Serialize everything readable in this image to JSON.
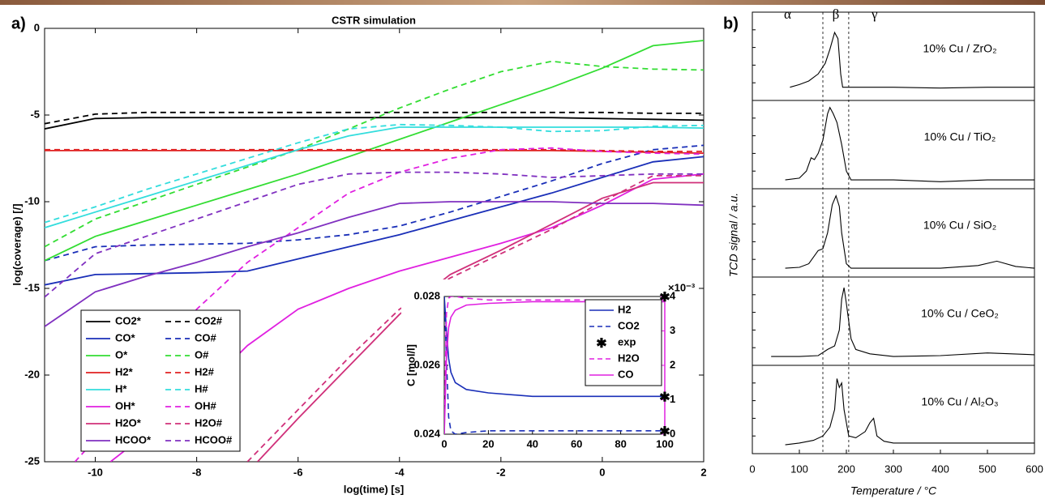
{
  "chart_data": [
    {
      "type": "line",
      "label": "a)",
      "title": "CSTR simulation",
      "xlabel": "log(time) [s]",
      "ylabel": "log(coverage) [/]",
      "xlim": [
        -11,
        2
      ],
      "ylim": [
        -25,
        0
      ],
      "xticks": [
        -10,
        -8,
        -6,
        -4,
        -2,
        0,
        2
      ],
      "yticks": [
        -25,
        -20,
        -15,
        -10,
        -5,
        0
      ],
      "legend": "lower-left",
      "x": [
        -11,
        -10,
        -9,
        -8,
        -7,
        -6,
        -5,
        -4,
        -3,
        -2,
        -1,
        0,
        1,
        2
      ],
      "series": [
        {
          "name": "CO2*",
          "color": "#000000",
          "dashed": false,
          "values": [
            -5.8,
            -5.2,
            -5.15,
            -5.15,
            -5.15,
            -5.15,
            -5.15,
            -5.15,
            -5.15,
            -5.15,
            -5.15,
            -5.2,
            -5.25,
            -5.3
          ]
        },
        {
          "name": "CO2#",
          "color": "#000000",
          "dashed": true,
          "values": [
            -5.5,
            -4.95,
            -4.85,
            -4.85,
            -4.85,
            -4.85,
            -4.85,
            -4.85,
            -4.85,
            -4.85,
            -4.85,
            -4.85,
            -4.9,
            -4.9
          ]
        },
        {
          "name": "CO*",
          "color": "#1a2fb8",
          "dashed": false,
          "values": [
            -14.8,
            -14.2,
            -14.15,
            -14.1,
            -14.0,
            -13.3,
            -12.6,
            -11.9,
            -11.1,
            -10.3,
            -9.5,
            -8.6,
            -7.7,
            -7.4
          ]
        },
        {
          "name": "CO#",
          "color": "#1a2fb8",
          "dashed": true,
          "values": [
            -13.4,
            -12.6,
            -12.5,
            -12.45,
            -12.4,
            -12.2,
            -11.9,
            -11.4,
            -10.6,
            -9.7,
            -8.8,
            -7.8,
            -7.0,
            -6.75
          ]
        },
        {
          "name": "O*",
          "color": "#33dd33",
          "dashed": false,
          "values": [
            -13.4,
            -12.0,
            -11.1,
            -10.2,
            -9.3,
            -8.4,
            -7.4,
            -6.4,
            -5.4,
            -4.4,
            -3.4,
            -2.3,
            -1.0,
            -0.7
          ]
        },
        {
          "name": "O#",
          "color": "#33dd33",
          "dashed": true,
          "values": [
            -12.6,
            -11.0,
            -10.0,
            -9.0,
            -8.0,
            -7.0,
            -5.8,
            -4.6,
            -3.5,
            -2.5,
            -1.9,
            -2.2,
            -2.35,
            -2.4
          ]
        },
        {
          "name": "H2*",
          "color": "#e02020",
          "dashed": false,
          "values": [
            -7.05,
            -7.05,
            -7.05,
            -7.05,
            -7.05,
            -7.05,
            -7.05,
            -7.05,
            -7.05,
            -7.05,
            -7.05,
            -7.1,
            -7.15,
            -7.2
          ]
        },
        {
          "name": "H2#",
          "color": "#e02020",
          "dashed": true,
          "values": [
            -7.0,
            -7.0,
            -7.0,
            -7.0,
            -7.0,
            -7.0,
            -7.0,
            -7.0,
            -7.0,
            -7.0,
            -7.0,
            -7.05,
            -7.1,
            -7.1
          ]
        },
        {
          "name": "H*",
          "color": "#33dddd",
          "dashed": false,
          "values": [
            -11.5,
            -10.6,
            -9.7,
            -8.8,
            -7.9,
            -7.0,
            -6.2,
            -5.7,
            -5.7,
            -5.7,
            -5.7,
            -5.7,
            -5.7,
            -5.75
          ]
        },
        {
          "name": "H#",
          "color": "#33dddd",
          "dashed": true,
          "values": [
            -11.2,
            -10.3,
            -9.3,
            -8.4,
            -7.5,
            -6.6,
            -5.8,
            -5.55,
            -5.6,
            -5.7,
            -5.95,
            -5.9,
            -5.65,
            -5.6
          ]
        },
        {
          "name": "OH*",
          "color": "#e020e0",
          "dashed": false,
          "x": [
            -9.7,
            -9,
            -8,
            -7,
            -6,
            -5,
            -4,
            -3,
            -2,
            -1,
            0,
            1,
            2
          ],
          "values": [
            -25,
            -23.4,
            -21.2,
            -18.3,
            -16.2,
            -15,
            -14,
            -13.2,
            -12.4,
            -11.5,
            -10.2,
            -8.7,
            -8.4
          ]
        },
        {
          "name": "OH#",
          "color": "#e020e0",
          "dashed": true,
          "x": [
            -10.4,
            -9,
            -8,
            -7,
            -6,
            -5,
            -4,
            -3,
            -2,
            -1,
            0,
            1,
            2
          ],
          "values": [
            -25,
            -20.5,
            -16.2,
            -13.5,
            -11.5,
            -9.5,
            -8.3,
            -7.5,
            -7.0,
            -6.9,
            -7.1,
            -7.2,
            -7.25
          ]
        },
        {
          "name": "H2O*",
          "color": "#d0307a",
          "dashed": false,
          "x": [
            -6.8,
            -6,
            -5,
            -4,
            -3,
            -2,
            -1,
            0,
            1,
            2
          ],
          "values": [
            -25,
            -22.5,
            -19.5,
            -16.5,
            -14.2,
            -12.8,
            -11.3,
            -9.8,
            -8.9,
            -8.9
          ]
        },
        {
          "name": "H2O#",
          "color": "#d0307a",
          "dashed": true,
          "x": [
            -7,
            -6,
            -5,
            -4,
            -3,
            -2,
            -1,
            0,
            1,
            2
          ],
          "values": [
            -25,
            -22,
            -19,
            -16.2,
            -14.4,
            -13,
            -11.6,
            -10,
            -8.5,
            -8.5
          ]
        },
        {
          "name": "HCOO*",
          "color": "#8030c0",
          "dashed": false,
          "values": [
            -17.2,
            -15.2,
            -14.3,
            -13.5,
            -12.6,
            -11.8,
            -10.9,
            -10.1,
            -10.0,
            -10.0,
            -10.0,
            -10.1,
            -10.1,
            -10.2
          ]
        },
        {
          "name": "HCOO#",
          "color": "#8030c0",
          "dashed": true,
          "values": [
            -15.5,
            -13.0,
            -12.0,
            -11.0,
            -10.0,
            -9.0,
            -8.4,
            -8.3,
            -8.3,
            -8.4,
            -8.6,
            -8.5,
            -8.4,
            -8.4
          ]
        }
      ]
    },
    {
      "type": "line",
      "ylabel": "C [mol/l]",
      "xlim": [
        0,
        100
      ],
      "ylim": [
        0.024,
        0.028
      ],
      "y2lim": [
        0,
        4
      ],
      "xticks": [
        0,
        20,
        40,
        60,
        80,
        100
      ],
      "yticks": [
        0.024,
        0.026,
        0.028
      ],
      "y2ticks": [
        0,
        1,
        2,
        3,
        4
      ],
      "y2_scale_label": "×10⁻³",
      "y2_color": "#e020e0",
      "legend": "upper-right",
      "x": [
        0,
        1,
        2,
        3,
        5,
        10,
        20,
        40,
        60,
        80,
        100
      ],
      "series": [
        {
          "name": "H2",
          "color": "#1a2fb8",
          "dashed": false,
          "values": [
            0.028,
            0.027,
            0.0262,
            0.0258,
            0.0255,
            0.0253,
            0.0252,
            0.0251,
            0.0251,
            0.0251,
            0.0251
          ]
        },
        {
          "name": "CO2",
          "color": "#1a2fb8",
          "dashed": true,
          "values": [
            0.028,
            0.0262,
            0.0245,
            0.0241,
            0.024,
            0.02405,
            0.0241,
            0.0241,
            0.0241,
            0.0241,
            0.0241
          ]
        },
        {
          "name": "exp",
          "color": "#000000",
          "style": "markers",
          "x": [
            100,
            100,
            100
          ],
          "values": [
            0.028,
            0.0251,
            0.0241
          ]
        },
        {
          "name": "H2O",
          "color": "#e020e0",
          "dashed": true,
          "axis": "y2",
          "values": [
            0,
            3.5,
            3.95,
            4.0,
            4.0,
            3.95,
            3.9,
            3.9,
            3.9,
            3.9,
            3.9
          ]
        },
        {
          "name": "CO",
          "color": "#e020e0",
          "dashed": false,
          "axis": "y2",
          "values": [
            0,
            2.2,
            3.1,
            3.4,
            3.6,
            3.75,
            3.8,
            3.85,
            3.85,
            3.85,
            3.85
          ]
        }
      ]
    },
    {
      "type": "stacked-traces",
      "label": "b)",
      "xlabel": "Temperature / °C",
      "ylabel": "TCD signal / a.u.",
      "xlim": [
        0,
        600
      ],
      "xticks": [
        0,
        100,
        200,
        300,
        400,
        500,
        600
      ],
      "ylim": [
        0,
        1
      ],
      "dividers": [
        150,
        205
      ],
      "region_labels": [
        "α",
        "β",
        "γ"
      ],
      "color": "#000000",
      "panels": [
        {
          "label": "10% Cu / ZrO₂",
          "x": [
            80,
            100,
            120,
            140,
            155,
            165,
            175,
            182,
            188,
            192,
            200,
            300,
            400,
            500,
            600
          ],
          "values": [
            0.15,
            0.18,
            0.22,
            0.3,
            0.42,
            0.58,
            0.77,
            0.7,
            0.3,
            0.15,
            0.15,
            0.15,
            0.14,
            0.15,
            0.15
          ]
        },
        {
          "label": "10% Cu / TiO₂",
          "x": [
            70,
            100,
            115,
            125,
            132,
            140,
            150,
            160,
            165,
            172,
            180,
            190,
            200,
            210,
            300,
            400,
            500,
            600
          ],
          "values": [
            0.1,
            0.12,
            0.2,
            0.35,
            0.33,
            0.4,
            0.55,
            0.85,
            0.92,
            0.85,
            0.75,
            0.5,
            0.2,
            0.1,
            0.1,
            0.08,
            0.1,
            0.1
          ]
        },
        {
          "label": "10% Cu / SiO₂",
          "x": [
            70,
            100,
            120,
            140,
            150,
            160,
            170,
            178,
            185,
            190,
            200,
            210,
            300,
            400,
            480,
            520,
            560,
            600
          ],
          "values": [
            0.1,
            0.11,
            0.15,
            0.3,
            0.32,
            0.5,
            0.82,
            0.92,
            0.8,
            0.5,
            0.15,
            0.1,
            0.1,
            0.1,
            0.13,
            0.18,
            0.12,
            0.1
          ]
        },
        {
          "label": "10% Cu / CeO₂",
          "x": [
            40,
            100,
            140,
            160,
            175,
            185,
            190,
            195,
            200,
            210,
            220,
            250,
            300,
            400,
            500,
            600
          ],
          "values": [
            0.1,
            0.1,
            0.11,
            0.18,
            0.22,
            0.4,
            0.75,
            0.88,
            0.7,
            0.3,
            0.18,
            0.13,
            0.1,
            0.11,
            0.14,
            0.12
          ]
        },
        {
          "label": "10% Cu / Al₂O₃",
          "x": [
            70,
            100,
            130,
            150,
            165,
            175,
            180,
            185,
            190,
            195,
            205,
            220,
            240,
            250,
            258,
            265,
            280,
            300,
            400,
            500,
            600
          ],
          "values": [
            0.1,
            0.12,
            0.15,
            0.2,
            0.3,
            0.5,
            0.85,
            0.75,
            0.8,
            0.5,
            0.2,
            0.18,
            0.25,
            0.35,
            0.4,
            0.2,
            0.14,
            0.12,
            0.12,
            0.12,
            0.12
          ]
        }
      ]
    }
  ]
}
